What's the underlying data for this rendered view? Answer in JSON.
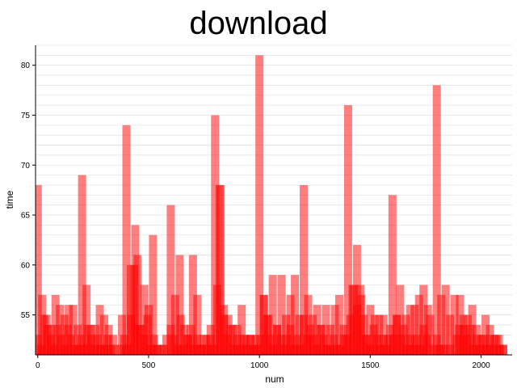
{
  "chart_data": {
    "type": "bar",
    "title": "download",
    "xlabel": "num",
    "ylabel": "time",
    "xlim": [
      -10,
      2140
    ],
    "ylim": [
      51,
      82
    ],
    "xticks": [
      0,
      500,
      1000,
      1500,
      2000
    ],
    "yticks": [
      55,
      60,
      65,
      70,
      75,
      80
    ],
    "bar_color": "#ff0000",
    "bar_opacity": 0.5,
    "grid": true,
    "legend": "none",
    "series": [
      {
        "x": [
          0,
          20,
          40,
          60,
          80,
          100,
          120,
          140,
          160,
          180,
          200,
          220,
          240,
          260,
          280,
          300,
          320,
          340,
          360,
          380,
          400,
          420,
          440,
          460,
          480,
          500,
          520,
          540,
          560,
          580,
          600,
          620,
          640,
          660,
          680,
          700,
          720,
          740,
          760,
          780,
          800,
          820,
          840,
          860,
          880,
          900,
          920,
          940,
          960,
          980,
          1000,
          1020,
          1040,
          1060,
          1080,
          1100,
          1120,
          1140,
          1160,
          1180,
          1200,
          1220,
          1240,
          1260,
          1280,
          1300,
          1320,
          1340,
          1360,
          1380,
          1400,
          1420,
          1440,
          1460,
          1480,
          1500,
          1520,
          1540,
          1560,
          1580,
          1600,
          1620,
          1640,
          1660,
          1680,
          1700,
          1720,
          1740,
          1760,
          1780,
          1800,
          1820,
          1840,
          1860,
          1880,
          1900,
          1920,
          1940,
          1960,
          1980,
          2000,
          2020,
          2040,
          2060,
          2080,
          2100
        ],
        "values": [
          68,
          57,
          55,
          54,
          57,
          56,
          55,
          56,
          56,
          54,
          69,
          58,
          54,
          54,
          56,
          55,
          54,
          53,
          51,
          55,
          74,
          60,
          64,
          54,
          58,
          56,
          63,
          52,
          52,
          53,
          66,
          57,
          61,
          54,
          53,
          61,
          57,
          52,
          53,
          54,
          75,
          68,
          56,
          55,
          54,
          54,
          56,
          53,
          53,
          53,
          81,
          57,
          55,
          59,
          54,
          59,
          55,
          57,
          59,
          55,
          68,
          57,
          55,
          56,
          54,
          56,
          54,
          56,
          57,
          53,
          76,
          58,
          62,
          57,
          53,
          56,
          55,
          55,
          55,
          53,
          67,
          55,
          53,
          55,
          56,
          56,
          57,
          58,
          56,
          51,
          78,
          57,
          58,
          55,
          57,
          54,
          54,
          55,
          56,
          54,
          53,
          55,
          54,
          53,
          53,
          52
        ]
      },
      {
        "x": [
          0,
          15,
          30,
          45,
          60,
          75,
          90,
          105,
          120,
          135,
          150,
          165,
          180,
          195,
          210,
          225,
          240,
          255,
          270,
          285,
          300,
          315,
          330,
          345,
          360,
          375,
          390,
          405,
          420,
          435,
          450,
          465,
          480,
          495,
          510,
          525,
          540,
          555,
          570,
          585,
          600,
          615,
          630,
          645,
          660,
          675,
          690,
          705,
          720,
          735,
          750,
          765,
          780,
          795,
          810,
          825,
          840,
          855,
          870,
          885,
          900,
          915,
          930,
          945,
          960,
          975,
          990,
          1005,
          1020,
          1035,
          1050,
          1065,
          1080,
          1095,
          1110,
          1125,
          1140,
          1155,
          1170,
          1185,
          1200,
          1215,
          1230,
          1245,
          1260,
          1275,
          1290,
          1305,
          1320,
          1335,
          1350,
          1365,
          1380,
          1395,
          1410,
          1425,
          1440,
          1455,
          1470,
          1485,
          1500,
          1515,
          1530,
          1545,
          1560,
          1575,
          1590,
          1605,
          1620,
          1635,
          1650,
          1665,
          1680,
          1695,
          1710,
          1725,
          1740,
          1755,
          1770,
          1785,
          1800,
          1815,
          1830,
          1845,
          1860,
          1875,
          1890,
          1905,
          1920,
          1935,
          1950,
          1965,
          1980,
          1995,
          2010,
          2025,
          2040,
          2055,
          2070,
          2085,
          2100
        ],
        "values": [
          53,
          52,
          55,
          54,
          53,
          52,
          54,
          53,
          52,
          54,
          53,
          52,
          52,
          53,
          52,
          54,
          53,
          52,
          53,
          52,
          52,
          53,
          52,
          52,
          51,
          52,
          53,
          52,
          55,
          60,
          61,
          54,
          53,
          55,
          52,
          53,
          52,
          51,
          52,
          51,
          54,
          53,
          52,
          55,
          52,
          53,
          54,
          52,
          53,
          52,
          53,
          52,
          53,
          52,
          58,
          68,
          55,
          53,
          54,
          52,
          53,
          52,
          53,
          52,
          53,
          52,
          52,
          53,
          57,
          55,
          53,
          52,
          54,
          53,
          52,
          53,
          54,
          52,
          53,
          52,
          55,
          53,
          54,
          53,
          52,
          54,
          53,
          52,
          52,
          53,
          52,
          52,
          54,
          53,
          55,
          58,
          56,
          58,
          55,
          53,
          52,
          54,
          53,
          52,
          53,
          52,
          54,
          53,
          55,
          58,
          54,
          52,
          53,
          52,
          53,
          52,
          54,
          53,
          55,
          52,
          53,
          52,
          52,
          51,
          52,
          51,
          53,
          57,
          55,
          53,
          54,
          52,
          53,
          52,
          53,
          52,
          53,
          52,
          53,
          52,
          52
        ]
      }
    ]
  }
}
